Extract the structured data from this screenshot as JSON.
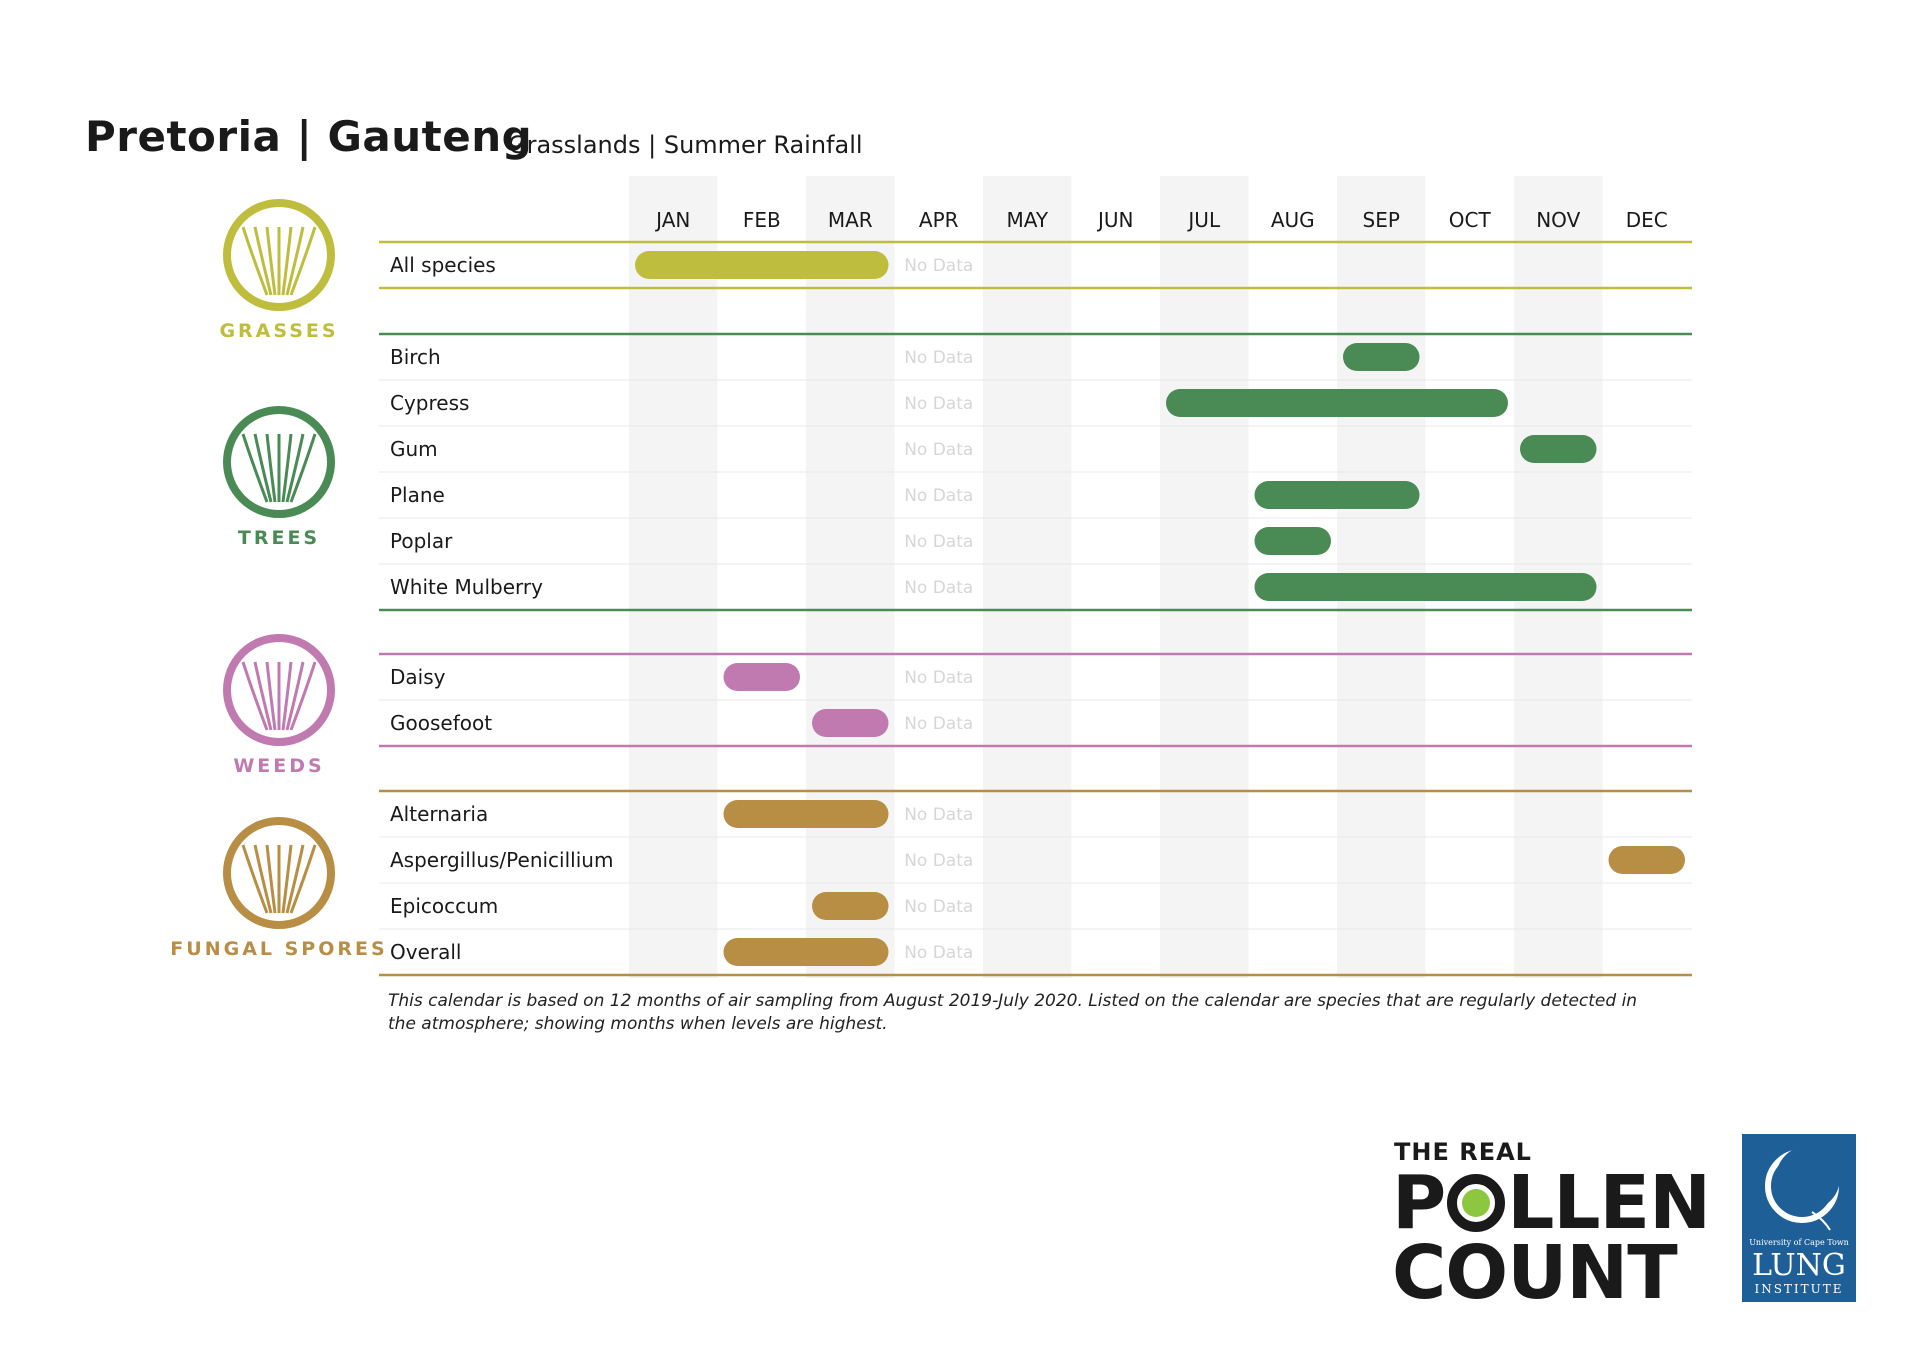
{
  "title": "Pretoria | Gauteng",
  "subtitle": "Grasslands | Summer Rainfall",
  "chart_data": {
    "type": "table",
    "months": [
      "JAN",
      "FEB",
      "MAR",
      "APR",
      "MAY",
      "JUN",
      "JUL",
      "AUG",
      "SEP",
      "OCT",
      "NOV",
      "DEC"
    ],
    "no_data_label": "No Data",
    "no_data_month": "APR",
    "groups": [
      {
        "name": "GRASSES",
        "color": "#bfbd3e",
        "rows": [
          {
            "label": "All species",
            "active": [
              "JAN",
              "FEB",
              "MAR"
            ]
          }
        ]
      },
      {
        "name": "TREES",
        "color": "#4a8a55",
        "rows": [
          {
            "label": "Birch",
            "active": [
              "SEP"
            ]
          },
          {
            "label": "Cypress",
            "active": [
              "JUL",
              "AUG",
              "SEP",
              "OCT"
            ]
          },
          {
            "label": "Gum",
            "active": [
              "NOV"
            ]
          },
          {
            "label": "Plane",
            "active": [
              "AUG",
              "SEP"
            ]
          },
          {
            "label": "Poplar",
            "active": [
              "AUG"
            ]
          },
          {
            "label": "White Mulberry",
            "active": [
              "AUG",
              "SEP",
              "OCT",
              "NOV"
            ]
          }
        ]
      },
      {
        "name": "WEEDS",
        "color": "#c07ab0",
        "rows": [
          {
            "label": "Daisy",
            "active": [
              "FEB"
            ]
          },
          {
            "label": "Goosefoot",
            "active": [
              "MAR"
            ]
          }
        ]
      },
      {
        "name": "FUNGAL SPORES",
        "color": "#b88d44",
        "rows": [
          {
            "label": "Alternaria",
            "active": [
              "FEB",
              "MAR"
            ]
          },
          {
            "label": "Aspergillus/Penicillium",
            "active": [
              "DEC"
            ]
          },
          {
            "label": "Epicoccum",
            "active": [
              "MAR"
            ]
          },
          {
            "label": "Overall",
            "active": [
              "FEB",
              "MAR"
            ]
          }
        ]
      }
    ]
  },
  "footnote": "This calendar is based on 12 months of air sampling from August 2019-July 2020. Listed on the calendar are species that are regularly detected in the atmosphere; showing months when levels are highest.",
  "logo": {
    "line1": "THE REAL",
    "line2": "POLLEN",
    "line3": "COUNT",
    "pollen_color": "#8dc63f"
  },
  "institute": {
    "university": "University of Cape Town",
    "name": "LUNG",
    "subname": "INSTITUTE",
    "color": "#1f5f98"
  }
}
